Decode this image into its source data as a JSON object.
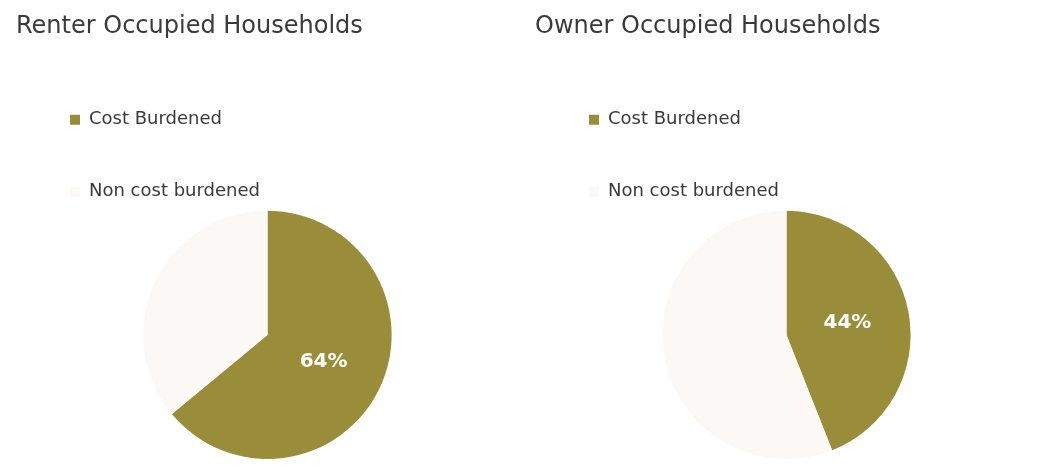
{
  "chart_data": [
    {
      "type": "pie",
      "title": "Renter Occupied Households",
      "categories": [
        "Cost Burdened",
        "Non cost burdened"
      ],
      "values": [
        64,
        36
      ],
      "colors": [
        "#9a8d3a",
        "#fbf8f6"
      ],
      "value_labels": [
        "64%",
        null
      ],
      "legend": "top left"
    },
    {
      "type": "pie",
      "title": "Owner Occupied Households",
      "categories": [
        "Cost Burdened",
        "Non cost burdened"
      ],
      "values": [
        44,
        56
      ],
      "colors": [
        "#9a8d3a",
        "#fbf8f6"
      ],
      "value_labels": [
        "44%",
        null
      ],
      "legend": "top left"
    }
  ]
}
